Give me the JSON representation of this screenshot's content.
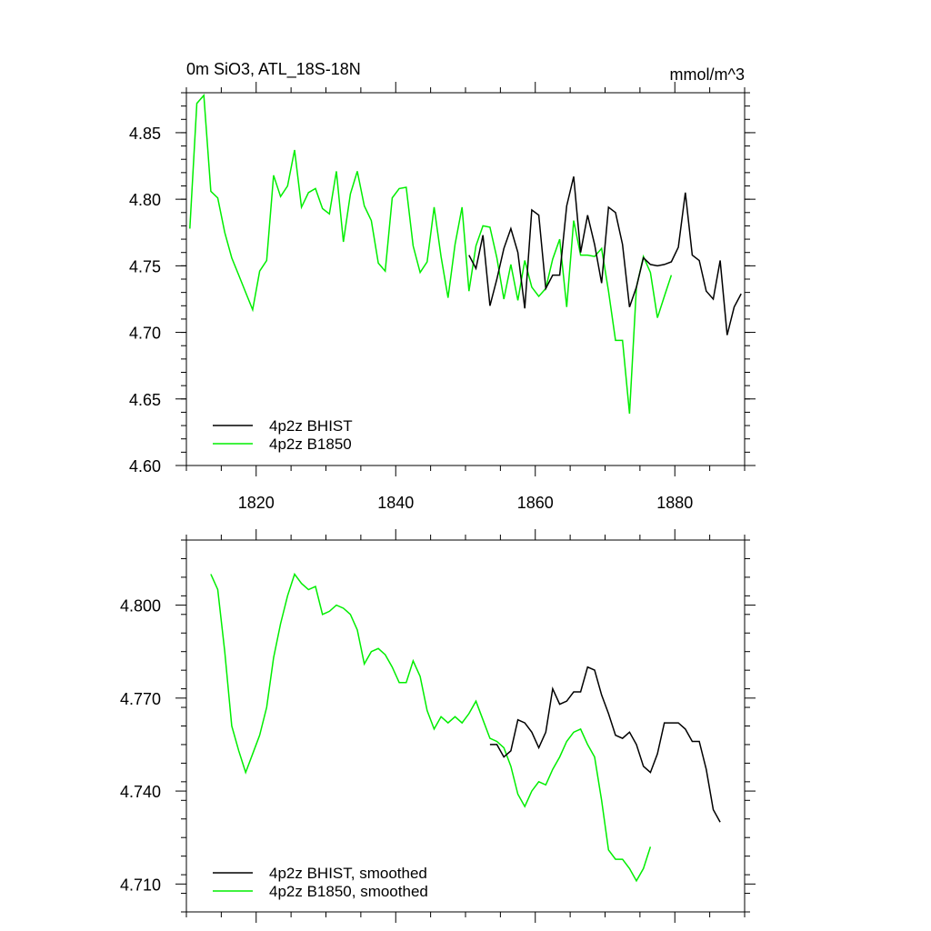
{
  "chart_data": [
    {
      "type": "line",
      "title": "0m SiO3, ATL_18S-18N",
      "units": "mmol/m^3",
      "xlim": [
        1810,
        1890
      ],
      "ylim": [
        4.6,
        4.88
      ],
      "x_ticks": [
        1820,
        1840,
        1860,
        1880
      ],
      "y_ticks": [
        4.6,
        4.65,
        4.7,
        4.75,
        4.8,
        4.85
      ],
      "y_tick_labels": [
        "4.60",
        "4.65",
        "4.70",
        "4.75",
        "4.80",
        "4.85"
      ],
      "legend_position": "bottom-left",
      "series": [
        {
          "name": "4p2z BHIST",
          "color": "#000000",
          "x": [
            1850.5,
            1851.5,
            1852.5,
            1853.5,
            1854.5,
            1855.5,
            1856.5,
            1857.5,
            1858.5,
            1859.5,
            1860.5,
            1861.5,
            1862.5,
            1863.5,
            1864.5,
            1865.5,
            1866.5,
            1867.5,
            1868.5,
            1869.5,
            1870.5,
            1871.5,
            1872.5,
            1873.5,
            1874.5,
            1875.5,
            1876.5,
            1877.5,
            1878.5,
            1879.5,
            1880.5,
            1881.5,
            1882.5,
            1883.5,
            1884.5,
            1885.5,
            1886.5,
            1887.5,
            1888.5,
            1889.5
          ],
          "y": [
            4.758,
            4.748,
            4.773,
            4.72,
            4.74,
            4.763,
            4.778,
            4.76,
            4.718,
            4.792,
            4.788,
            4.733,
            4.743,
            4.743,
            4.795,
            4.817,
            4.76,
            4.788,
            4.766,
            4.737,
            4.794,
            4.79,
            4.766,
            4.719,
            4.734,
            4.756,
            4.751,
            4.75,
            4.751,
            4.753,
            4.764,
            4.805,
            4.758,
            4.754,
            4.731,
            4.725,
            4.754,
            4.698,
            4.719,
            4.729
          ]
        },
        {
          "name": "4p2z B1850",
          "color": "#00ee00",
          "x": [
            1810.5,
            1811.5,
            1812.5,
            1813.5,
            1814.5,
            1815.5,
            1816.5,
            1817.5,
            1818.5,
            1819.5,
            1820.5,
            1821.5,
            1822.5,
            1823.5,
            1824.5,
            1825.5,
            1826.5,
            1827.5,
            1828.5,
            1829.5,
            1830.5,
            1831.5,
            1832.5,
            1833.5,
            1834.5,
            1835.5,
            1836.5,
            1837.5,
            1838.5,
            1839.5,
            1840.5,
            1841.5,
            1842.5,
            1843.5,
            1844.5,
            1845.5,
            1846.5,
            1847.5,
            1848.5,
            1849.5,
            1850.5,
            1851.5,
            1852.5,
            1853.5,
            1854.5,
            1855.5,
            1856.5,
            1857.5,
            1858.5,
            1859.5,
            1860.5,
            1861.5,
            1862.5,
            1863.5,
            1864.5,
            1865.5,
            1866.5,
            1867.5,
            1868.5,
            1869.5,
            1870.5,
            1871.5,
            1872.5,
            1873.5,
            1874.5,
            1875.5,
            1876.5,
            1877.5,
            1878.5,
            1879.5
          ],
          "y": [
            4.778,
            4.872,
            4.878,
            4.806,
            4.801,
            4.775,
            4.756,
            4.743,
            4.73,
            4.717,
            4.746,
            4.754,
            4.818,
            4.802,
            4.81,
            4.837,
            4.794,
            4.805,
            4.808,
            4.793,
            4.789,
            4.821,
            4.768,
            4.804,
            4.821,
            4.795,
            4.784,
            4.752,
            4.746,
            4.801,
            4.808,
            4.809,
            4.765,
            4.745,
            4.753,
            4.794,
            4.757,
            4.726,
            4.766,
            4.794,
            4.731,
            4.765,
            4.78,
            4.779,
            4.756,
            4.725,
            4.751,
            4.724,
            4.754,
            4.734,
            4.727,
            4.733,
            4.755,
            4.77,
            4.719,
            4.784,
            4.758,
            4.758,
            4.757,
            4.763,
            4.731,
            4.694,
            4.694,
            4.639,
            4.734,
            4.757,
            4.745,
            4.711,
            4.727,
            4.743
          ]
        }
      ]
    },
    {
      "type": "line",
      "title": "",
      "xlim": [
        1810,
        1890
      ],
      "ylim": [
        4.701,
        4.821
      ],
      "x_ticks": [
        1820,
        1840,
        1860,
        1880
      ],
      "y_ticks": [
        4.71,
        4.74,
        4.77,
        4.8
      ],
      "y_tick_labels": [
        "4.710",
        "4.740",
        "4.770",
        "4.800"
      ],
      "legend_position": "bottom-left",
      "series": [
        {
          "name": "4p2z BHIST, smoothed",
          "color": "#000000",
          "x": [
            1853.5,
            1854.5,
            1855.5,
            1856.5,
            1857.5,
            1858.5,
            1859.5,
            1860.5,
            1861.5,
            1862.5,
            1863.5,
            1864.5,
            1865.5,
            1866.5,
            1867.5,
            1868.5,
            1869.5,
            1870.5,
            1871.5,
            1872.5,
            1873.5,
            1874.5,
            1875.5,
            1876.5,
            1877.5,
            1878.5,
            1879.5,
            1880.5,
            1881.5,
            1882.5,
            1883.5,
            1884.5,
            1885.5,
            1886.5
          ],
          "y": [
            4.755,
            4.755,
            4.751,
            4.753,
            4.763,
            4.762,
            4.759,
            4.754,
            4.759,
            4.773,
            4.768,
            4.769,
            4.772,
            4.772,
            4.78,
            4.779,
            4.771,
            4.765,
            4.758,
            4.757,
            4.759,
            4.755,
            4.748,
            4.746,
            4.752,
            4.762,
            4.762,
            4.762,
            4.76,
            4.756,
            4.756,
            4.747,
            4.734,
            4.73
          ]
        },
        {
          "name": "4p2z B1850, smoothed",
          "color": "#00ee00",
          "x": [
            1813.5,
            1814.5,
            1815.5,
            1816.5,
            1817.5,
            1818.5,
            1819.5,
            1820.5,
            1821.5,
            1822.5,
            1823.5,
            1824.5,
            1825.5,
            1826.5,
            1827.5,
            1828.5,
            1829.5,
            1830.5,
            1831.5,
            1832.5,
            1833.5,
            1834.5,
            1835.5,
            1836.5,
            1837.5,
            1838.5,
            1839.5,
            1840.5,
            1841.5,
            1842.5,
            1843.5,
            1844.5,
            1845.5,
            1846.5,
            1847.5,
            1848.5,
            1849.5,
            1850.5,
            1851.5,
            1852.5,
            1853.5,
            1854.5,
            1855.5,
            1856.5,
            1857.5,
            1858.5,
            1859.5,
            1860.5,
            1861.5,
            1862.5,
            1863.5,
            1864.5,
            1865.5,
            1866.5,
            1867.5,
            1868.5,
            1869.5,
            1870.5,
            1871.5,
            1872.5,
            1873.5,
            1874.5,
            1875.5,
            1876.5
          ],
          "y": [
            4.81,
            4.805,
            4.785,
            4.761,
            4.753,
            4.746,
            4.752,
            4.758,
            4.767,
            4.783,
            4.794,
            4.803,
            4.81,
            4.807,
            4.805,
            4.806,
            4.797,
            4.798,
            4.8,
            4.799,
            4.797,
            4.792,
            4.781,
            4.785,
            4.786,
            4.784,
            4.78,
            4.775,
            4.775,
            4.782,
            4.777,
            4.766,
            4.76,
            4.764,
            4.762,
            4.764,
            4.762,
            4.765,
            4.769,
            4.763,
            4.757,
            4.756,
            4.754,
            4.748,
            4.739,
            4.735,
            4.74,
            4.743,
            4.742,
            4.747,
            4.751,
            4.756,
            4.759,
            4.76,
            4.755,
            4.751,
            4.737,
            4.721,
            4.718,
            4.718,
            4.715,
            4.711,
            4.715,
            4.722
          ]
        }
      ]
    }
  ]
}
